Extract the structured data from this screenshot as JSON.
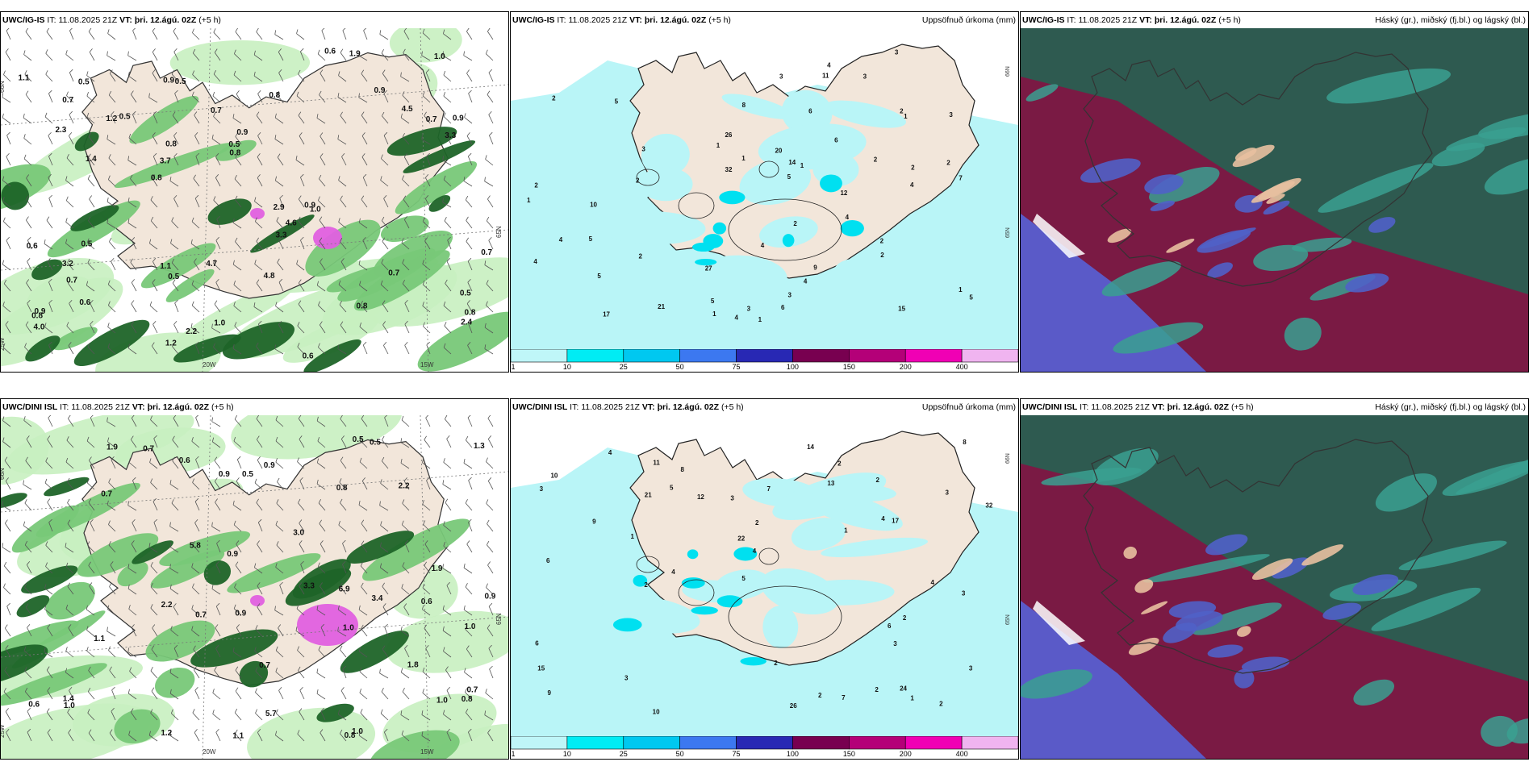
{
  "headers": {
    "label_it": "IT:",
    "label_vt": "VT:",
    "lead": "(+5 h)"
  },
  "rows": [
    {
      "model": "UWC/IG-IS",
      "it": "11.08.2025 21Z",
      "vt": "þri. 12.ágú. 02Z"
    },
    {
      "model": "UWC/DINI ISL",
      "it": "11.08.2025 21Z",
      "vt": "þri. 12.ágú. 02Z"
    }
  ],
  "panel_titles": {
    "precip": "Uppsöfnuð úrkoma (mm)",
    "cloud": "Háský (gr.), miðský (fj.bl.) og lágský (bl.)"
  },
  "map_labels": {
    "lat_66": "66N",
    "lat_65": "65N",
    "lon_25": "25W",
    "lon_20": "20W",
    "lon_15": "15W"
  },
  "colorbar": {
    "ticks": [
      "1",
      "10",
      "25",
      "50",
      "75",
      "100",
      "150",
      "200",
      "400"
    ],
    "colors": [
      "#bff6f8",
      "#00ecf4",
      "#00c8f0",
      "#3c78f0",
      "#2828b4",
      "#780050",
      "#b40078",
      "#f000b4",
      "#f0b4f0"
    ]
  },
  "colors": {
    "land": "#f2e6da",
    "sea_low": "#b9f5f7",
    "cyan": "#00e0f0",
    "green_light": "#c8f0c0",
    "green_mid": "#78c878",
    "green_dark": "#1e6428",
    "green_deep": "#0a3c14",
    "magenta": "#e060e0",
    "cloud_low": "#5a5ac8",
    "cloud_mid": "#7a1a44",
    "cloud_high": "#2e5a50",
    "cloud_teal": "#3aa090"
  },
  "precip_labels": {
    "top": [
      "3",
      "4",
      "6",
      "4",
      "4",
      "2",
      "2",
      "2",
      "1",
      "1",
      "1",
      "1",
      "2",
      "2",
      "5",
      "2",
      "5",
      "3",
      "4",
      "4",
      "2",
      "5",
      "3",
      "1",
      "2",
      "3",
      "4",
      "5",
      "6",
      "7",
      "8",
      "9",
      "10",
      "11",
      "12",
      "14",
      "15",
      "17",
      "20",
      "21",
      "26",
      "27",
      "32",
      "3",
      "4",
      "3",
      "1",
      "2",
      "2",
      "5",
      "6",
      "5",
      "4",
      "3",
      "2",
      "1",
      "1"
    ],
    "bottom": [
      "5",
      "4",
      "3",
      "6",
      "10",
      "4",
      "3",
      "2",
      "2",
      "1",
      "3",
      "4",
      "2",
      "2",
      "1",
      "3",
      "2",
      "4",
      "2",
      "6",
      "7",
      "8",
      "9",
      "10",
      "11",
      "12",
      "13",
      "14",
      "15",
      "17",
      "21",
      "22",
      "24",
      "26",
      "32",
      "3",
      "4",
      "3",
      "2",
      "2",
      "1",
      "5",
      "6",
      "7",
      "8",
      "9",
      "3",
      "2"
    ]
  },
  "wind_values": {
    "top": [
      "0.8",
      "0.8",
      "0.9",
      "0.9",
      "0.7",
      "0.6",
      "0.5",
      "0.5",
      "0.7",
      "0.5",
      "0.9",
      "1.0",
      "1.1",
      "1.2",
      "3.3",
      "2.9",
      "4.5",
      "3.7",
      "1.1",
      "0.8",
      "0.5",
      "0.6",
      "0.5",
      "0.8",
      "0.7",
      "0.9",
      "1.0",
      "1.2",
      "2.3",
      "3.3",
      "0.6",
      "0.7",
      "0.5",
      "0.8",
      "0.5",
      "0.8",
      "0.7",
      "0.9",
      "1.0",
      "4.6",
      "4.8",
      "3.2",
      "4.0",
      "2.4",
      "4.7",
      "1.9",
      "2.2",
      "1.4",
      "0.9",
      "0.7",
      "0.6",
      "0.8"
    ],
    "bottom": [
      "0.8",
      "0.7",
      "0.9",
      "0.7",
      "0.8",
      "0.9",
      "1.0",
      "1.2",
      "1.1",
      "3.3",
      "3.0",
      "0.9",
      "0.5",
      "0.6",
      "0.7",
      "1.0",
      "1.1",
      "2.2",
      "1.9",
      "1.0",
      "0.9",
      "0.8",
      "0.7",
      "0.6",
      "0.5",
      "5.7",
      "5.8",
      "6.9",
      "3.4",
      "2.2",
      "1.8",
      "1.3",
      "1.0",
      "0.9",
      "0.7",
      "0.6",
      "1.0",
      "0.5",
      "1.4",
      "1.9"
    ]
  }
}
